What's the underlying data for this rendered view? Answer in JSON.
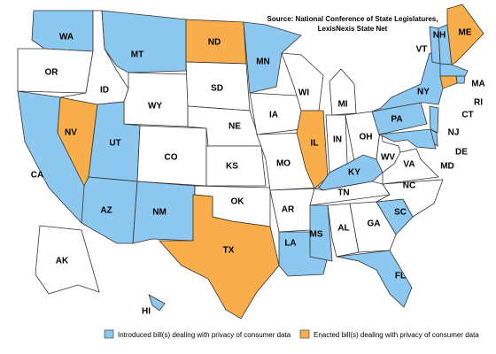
{
  "source": [
    "Source: National Conference of State Legislatures,",
    "LexisNexis State Net"
  ],
  "legend": [
    {
      "label": "Introduced bill(s) dealing with privacy of consumer data",
      "color": "#8dc8f0"
    },
    {
      "label": "Enacted bill(s) dealing with privacy of consumer data",
      "color": "#f9ae4b"
    }
  ],
  "none_color": "#ffffff",
  "states": [
    {
      "abbr": "WA",
      "legend": 0
    },
    {
      "abbr": "OR",
      "legend": null
    },
    {
      "abbr": "CA",
      "legend": 0
    },
    {
      "abbr": "NV",
      "legend": 1
    },
    {
      "abbr": "ID",
      "legend": null
    },
    {
      "abbr": "MT",
      "legend": 0
    },
    {
      "abbr": "WY",
      "legend": null
    },
    {
      "abbr": "UT",
      "legend": 0
    },
    {
      "abbr": "AZ",
      "legend": 0
    },
    {
      "abbr": "CO",
      "legend": null
    },
    {
      "abbr": "NM",
      "legend": 0
    },
    {
      "abbr": "ND",
      "legend": 1
    },
    {
      "abbr": "SD",
      "legend": null
    },
    {
      "abbr": "NE",
      "legend": null
    },
    {
      "abbr": "KS",
      "legend": null
    },
    {
      "abbr": "OK",
      "legend": null
    },
    {
      "abbr": "TX",
      "legend": 1
    },
    {
      "abbr": "MN",
      "legend": 0
    },
    {
      "abbr": "IA",
      "legend": null
    },
    {
      "abbr": "MO",
      "legend": null
    },
    {
      "abbr": "AR",
      "legend": null
    },
    {
      "abbr": "LA",
      "legend": 0
    },
    {
      "abbr": "WI",
      "legend": null
    },
    {
      "abbr": "IL",
      "legend": 1
    },
    {
      "abbr": "MI",
      "legend": null
    },
    {
      "abbr": "IN",
      "legend": null
    },
    {
      "abbr": "OH",
      "legend": null
    },
    {
      "abbr": "KY",
      "legend": 0
    },
    {
      "abbr": "TN",
      "legend": null
    },
    {
      "abbr": "MS",
      "legend": 0
    },
    {
      "abbr": "AL",
      "legend": null
    },
    {
      "abbr": "GA",
      "legend": null
    },
    {
      "abbr": "FL",
      "legend": 0
    },
    {
      "abbr": "SC",
      "legend": 0
    },
    {
      "abbr": "NC",
      "legend": null
    },
    {
      "abbr": "VA",
      "legend": null
    },
    {
      "abbr": "WV",
      "legend": null
    },
    {
      "abbr": "PA",
      "legend": 0
    },
    {
      "abbr": "NY",
      "legend": 0
    },
    {
      "abbr": "VT",
      "legend": 0
    },
    {
      "abbr": "NH",
      "legend": 0
    },
    {
      "abbr": "ME",
      "legend": 1
    },
    {
      "abbr": "MA",
      "legend": 0
    },
    {
      "abbr": "RI",
      "legend": 0
    },
    {
      "abbr": "CT",
      "legend": 1
    },
    {
      "abbr": "NJ",
      "legend": 0
    },
    {
      "abbr": "DE",
      "legend": 0
    },
    {
      "abbr": "MD",
      "legend": 0
    },
    {
      "abbr": "AK",
      "legend": null
    },
    {
      "abbr": "HI",
      "legend": 0
    }
  ]
}
